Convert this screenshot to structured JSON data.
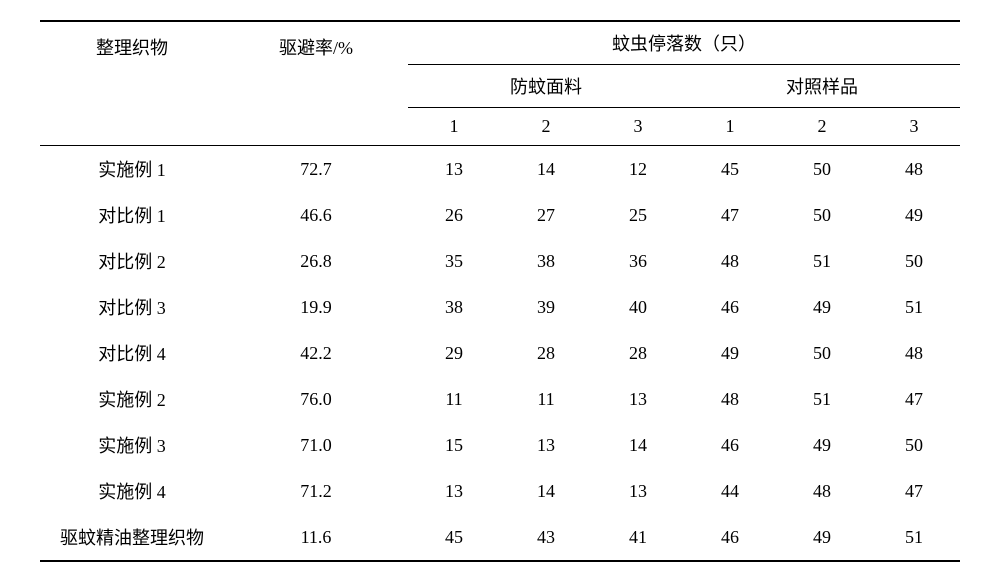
{
  "headers": {
    "fabric_label": "整理织物",
    "repellent_rate": "驱避率/%",
    "mosquito_count": "蚊虫停落数（只）",
    "anti_mosquito_fabric": "防蚊面料",
    "control_sample": "对照样品",
    "col1": "1",
    "col2": "2",
    "col3": "3",
    "col4": "1",
    "col5": "2",
    "col6": "3"
  },
  "rows": [
    {
      "label": "实施例 1",
      "rate": "72.7",
      "a1": "13",
      "a2": "14",
      "a3": "12",
      "b1": "45",
      "b2": "50",
      "b3": "48"
    },
    {
      "label": "对比例 1",
      "rate": "46.6",
      "a1": "26",
      "a2": "27",
      "a3": "25",
      "b1": "47",
      "b2": "50",
      "b3": "49"
    },
    {
      "label": "对比例 2",
      "rate": "26.8",
      "a1": "35",
      "a2": "38",
      "a3": "36",
      "b1": "48",
      "b2": "51",
      "b3": "50"
    },
    {
      "label": "对比例 3",
      "rate": "19.9",
      "a1": "38",
      "a2": "39",
      "a3": "40",
      "b1": "46",
      "b2": "49",
      "b3": "51"
    },
    {
      "label": "对比例 4",
      "rate": "42.2",
      "a1": "29",
      "a2": "28",
      "a3": "28",
      "b1": "49",
      "b2": "50",
      "b3": "48"
    },
    {
      "label": "实施例 2",
      "rate": "76.0",
      "a1": "11",
      "a2": "11",
      "a3": "13",
      "b1": "48",
      "b2": "51",
      "b3": "47"
    },
    {
      "label": "实施例 3",
      "rate": "71.0",
      "a1": "15",
      "a2": "13",
      "a3": "14",
      "b1": "46",
      "b2": "49",
      "b3": "50"
    },
    {
      "label": "实施例 4",
      "rate": "71.2",
      "a1": "13",
      "a2": "14",
      "a3": "13",
      "b1": "44",
      "b2": "48",
      "b3": "47"
    },
    {
      "label": "驱蚊精油整理织物",
      "rate": "11.6",
      "a1": "45",
      "a2": "43",
      "a3": "41",
      "b1": "46",
      "b2": "49",
      "b3": "51"
    }
  ],
  "styling": {
    "font_family": "SimSun",
    "font_size_pt": 14,
    "text_color": "#000000",
    "background_color": "#ffffff",
    "border_color": "#000000",
    "top_bottom_border_width": 2,
    "inner_border_width": 1,
    "cell_padding_v": 10,
    "cell_padding_h": 4
  }
}
